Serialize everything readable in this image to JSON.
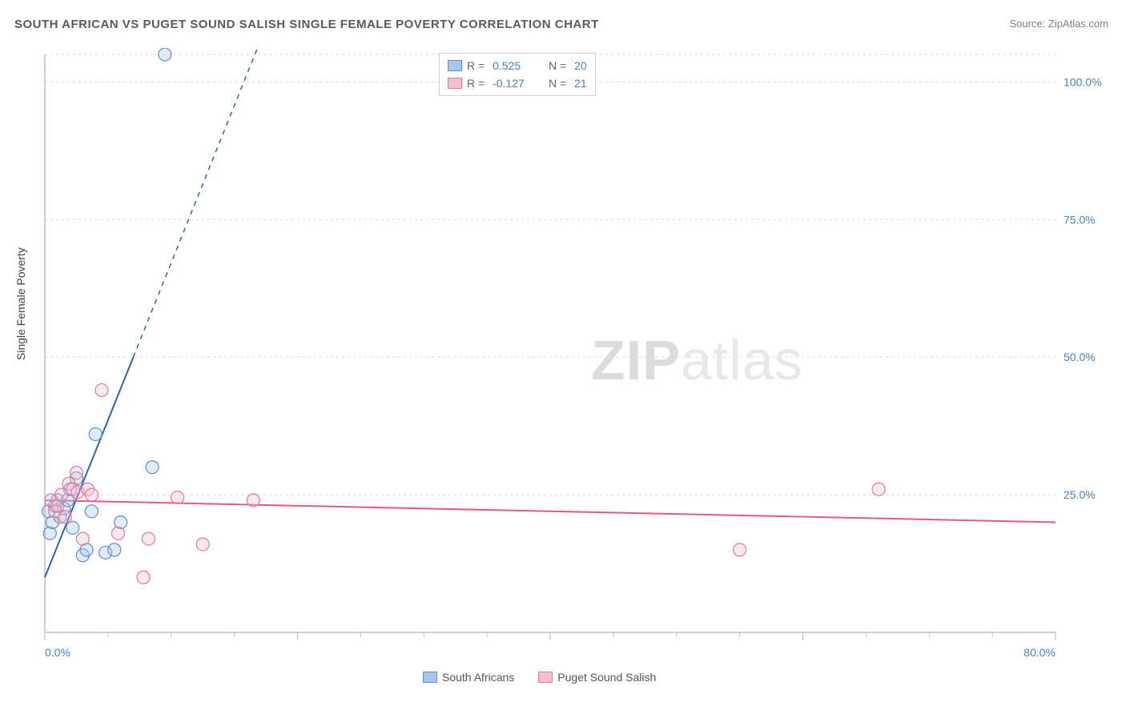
{
  "title": "SOUTH AFRICAN VS PUGET SOUND SALISH SINGLE FEMALE POVERTY CORRELATION CHART",
  "source_prefix": "Source: ",
  "source_name": "ZipAtlas.com",
  "y_axis_label": "Single Female Poverty",
  "watermark_bold": "ZIP",
  "watermark_rest": "atlas",
  "chart": {
    "type": "scatter",
    "background_color": "#ffffff",
    "grid_color": "#d8d8d8",
    "axis_color": "#bfbfbf",
    "xlim": [
      0,
      80
    ],
    "ylim": [
      0,
      105
    ],
    "y_gridlines": [
      25,
      50,
      75,
      100,
      105
    ],
    "x_ticks_major": [
      0,
      20,
      40,
      60,
      80
    ],
    "x_ticks_minor": [
      5,
      10,
      15,
      25,
      30,
      35,
      45,
      50,
      55,
      65,
      70,
      75
    ],
    "x_tick_labels": {
      "0": "0.0%",
      "80": "80.0%"
    },
    "y_tick_labels": {
      "25": "25.0%",
      "50": "50.0%",
      "75": "75.0%",
      "100": "100.0%"
    },
    "marker_radius": 8,
    "marker_stroke_width": 1.2,
    "marker_fill_opacity": 0.35,
    "series": [
      {
        "key": "south_africans",
        "label": "South Africans",
        "color_stroke": "#5b8fce",
        "color_fill": "#a9c7eb",
        "r_value": "0.525",
        "n_value": "20",
        "regression": {
          "x1": 0,
          "y1": 10,
          "x2": 7,
          "y2": 50,
          "extend_to_x": 24,
          "color": "#2e63b3",
          "width": 2
        },
        "points": [
          [
            0.3,
            22
          ],
          [
            0.4,
            18
          ],
          [
            0.6,
            20
          ],
          [
            0.8,
            23
          ],
          [
            1.0,
            24
          ],
          [
            1.2,
            21
          ],
          [
            1.5,
            22.5
          ],
          [
            1.8,
            24
          ],
          [
            2.0,
            26
          ],
          [
            2.2,
            19
          ],
          [
            2.5,
            28
          ],
          [
            3.0,
            14
          ],
          [
            3.3,
            15
          ],
          [
            3.7,
            22
          ],
          [
            4.0,
            36
          ],
          [
            4.8,
            14.5
          ],
          [
            5.5,
            15
          ],
          [
            6.0,
            20
          ],
          [
            8.5,
            30
          ],
          [
            9.5,
            105
          ]
        ]
      },
      {
        "key": "puget_sound_salish",
        "label": "Puget Sound Salish",
        "color_stroke": "#e27a9a",
        "color_fill": "#f4bfd0",
        "r_value": "-0.127",
        "n_value": "21",
        "regression": {
          "x1": 0,
          "y1": 24,
          "x2": 80,
          "y2": 20,
          "color": "#e05a86",
          "width": 2
        },
        "points": [
          [
            0.5,
            24
          ],
          [
            0.8,
            22
          ],
          [
            1.0,
            23
          ],
          [
            1.3,
            25
          ],
          [
            1.6,
            21
          ],
          [
            1.9,
            27
          ],
          [
            2.2,
            26
          ],
          [
            2.5,
            29
          ],
          [
            2.6,
            25.5
          ],
          [
            3.0,
            17
          ],
          [
            3.4,
            26
          ],
          [
            3.7,
            25
          ],
          [
            4.5,
            44
          ],
          [
            5.8,
            18
          ],
          [
            7.8,
            10
          ],
          [
            8.2,
            17
          ],
          [
            10.5,
            24.5
          ],
          [
            12.5,
            16
          ],
          [
            16.5,
            24
          ],
          [
            55,
            15
          ],
          [
            66,
            26
          ]
        ]
      }
    ]
  },
  "legend_top": {
    "r_label": "R  =",
    "n_label": "N  =",
    "value_color": "#4a80c7"
  },
  "legend_bottom": {
    "items": [
      "South Africans",
      "Puget Sound Salish"
    ]
  }
}
